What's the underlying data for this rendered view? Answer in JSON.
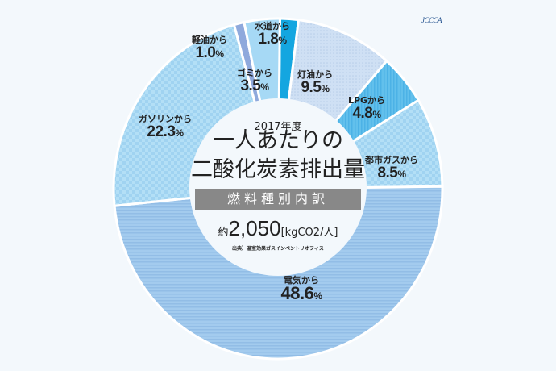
{
  "logo": {
    "text": "JCCCA"
  },
  "center": {
    "year": "2017年度",
    "title_line1": "一人あたりの",
    "title_line2": "二酸化炭素排出量",
    "subtitle": "燃料種別内訳",
    "total_prefix": "約",
    "total_value": "2,050",
    "total_unit": "[kgCO2/人]",
    "source": "出典）温室効果ガスインベントリオフィス"
  },
  "chart_data": {
    "type": "pie",
    "donut": true,
    "title": "2017年度 一人あたりの二酸化炭素排出量 燃料種別内訳",
    "subtitle": "約2,050 [kgCO2/人]",
    "source": "出典）温室効果ガスインベントリオフィス",
    "unit": "%",
    "categories": [
      "水道から",
      "灯油から",
      "LPGから",
      "都市ガスから",
      "電気から",
      "ガソリンから",
      "軽油から",
      "ゴミから"
    ],
    "values": [
      1.8,
      9.5,
      4.8,
      8.5,
      48.6,
      22.3,
      1.0,
      3.5
    ],
    "colors": [
      "#14a6e0",
      "#c9dcf2",
      "#5fbde9",
      "#a9d8f3",
      "#9dc6ec",
      "#abdaf5",
      "#8fa9dc",
      "#a6d9f5"
    ]
  },
  "labels": [
    {
      "name": "水道から",
      "value": "1.8",
      "pct": "%"
    },
    {
      "name": "灯油から",
      "value": "9.5",
      "pct": "%"
    },
    {
      "name": "LPGから",
      "value": "4.8",
      "pct": "%"
    },
    {
      "name": "都市ガスから",
      "value": "8.5",
      "pct": "%"
    },
    {
      "name": "電気から",
      "value": "48.6",
      "pct": "%"
    },
    {
      "name": "ガソリンから",
      "value": "22.3",
      "pct": "%"
    },
    {
      "name": "軽油から",
      "value": "1.0",
      "pct": "%"
    },
    {
      "name": "ゴミから",
      "value": "3.5",
      "pct": "%"
    }
  ]
}
